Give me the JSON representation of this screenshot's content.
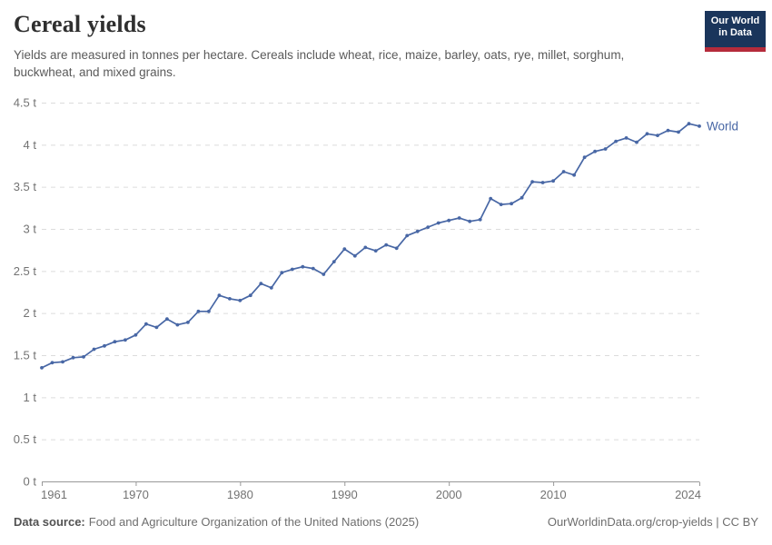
{
  "header": {
    "title": "Cereal yields",
    "subtitle_line1": "Yields are measured in tonnes per hectare. Cereals include wheat, rice, maize, barley, oats, rye, millet, sorghum,",
    "subtitle_line2": "buckwheat, and mixed grains."
  },
  "logo": {
    "line1": "Our World",
    "line2": "in Data",
    "bg_color": "#1a355b",
    "accent_color": "#b52b3b"
  },
  "chart_data": {
    "type": "line",
    "title": "Cereal yields",
    "subtitle": "Yields are measured in tonnes per hectare. Cereals include wheat, rice, maize, barley, oats, rye, millet, sorghum, buckwheat, and mixed grains.",
    "xlabel": "",
    "ylabel": "",
    "unit": "t",
    "xlim": [
      1961,
      2024
    ],
    "ylim": [
      0,
      4.5
    ],
    "grid": "horizontal-dashed",
    "legend_position": "end-of-line-label",
    "x": [
      1961,
      1962,
      1963,
      1964,
      1965,
      1966,
      1967,
      1968,
      1969,
      1970,
      1971,
      1972,
      1973,
      1974,
      1975,
      1976,
      1977,
      1978,
      1979,
      1980,
      1981,
      1982,
      1983,
      1984,
      1985,
      1986,
      1987,
      1988,
      1989,
      1990,
      1991,
      1992,
      1993,
      1994,
      1995,
      1996,
      1997,
      1998,
      1999,
      2000,
      2001,
      2002,
      2003,
      2004,
      2005,
      2006,
      2007,
      2008,
      2009,
      2010,
      2011,
      2012,
      2013,
      2014,
      2015,
      2016,
      2017,
      2018,
      2019,
      2020,
      2021,
      2022,
      2023,
      2024
    ],
    "series": [
      {
        "name": "World",
        "color": "#4867a5",
        "values": [
          1.35,
          1.41,
          1.42,
          1.47,
          1.48,
          1.57,
          1.61,
          1.66,
          1.68,
          1.74,
          1.87,
          1.83,
          1.93,
          1.86,
          1.89,
          2.02,
          2.02,
          2.21,
          2.17,
          2.15,
          2.21,
          2.35,
          2.3,
          2.48,
          2.52,
          2.55,
          2.53,
          2.46,
          2.61,
          2.76,
          2.68,
          2.78,
          2.74,
          2.81,
          2.77,
          2.92,
          2.97,
          3.02,
          3.07,
          3.1,
          3.13,
          3.09,
          3.11,
          3.36,
          3.29,
          3.3,
          3.37,
          3.56,
          3.55,
          3.57,
          3.68,
          3.64,
          3.85,
          3.92,
          3.95,
          4.04,
          4.08,
          4.03,
          4.13,
          4.11,
          4.17,
          4.15,
          4.25,
          4.22
        ]
      }
    ],
    "y_ticks": [
      {
        "value": 0,
        "label": "0 t"
      },
      {
        "value": 0.5,
        "label": "0.5 t"
      },
      {
        "value": 1,
        "label": "1 t"
      },
      {
        "value": 1.5,
        "label": "1.5 t"
      },
      {
        "value": 2,
        "label": "2 t"
      },
      {
        "value": 2.5,
        "label": "2.5 t"
      },
      {
        "value": 3,
        "label": "3 t"
      },
      {
        "value": 3.5,
        "label": "3.5 t"
      },
      {
        "value": 4,
        "label": "4 t"
      },
      {
        "value": 4.5,
        "label": "4.5 t"
      }
    ],
    "x_ticks": [
      {
        "value": 1961,
        "label": "1961",
        "anchor": "start"
      },
      {
        "value": 1970,
        "label": "1970",
        "anchor": "middle"
      },
      {
        "value": 1980,
        "label": "1980",
        "anchor": "middle"
      },
      {
        "value": 1990,
        "label": "1990",
        "anchor": "middle"
      },
      {
        "value": 2000,
        "label": "2000",
        "anchor": "middle"
      },
      {
        "value": 2010,
        "label": "2010",
        "anchor": "middle"
      },
      {
        "value": 2024,
        "label": "2024",
        "anchor": "end"
      }
    ],
    "colors": {
      "line": "#4867a5",
      "gridline": "#dcdcdc",
      "axis": "#999999",
      "tick_label": "#737373"
    }
  },
  "footer": {
    "source_label": "Data source:",
    "source_text": "Food and Agriculture Organization of the United Nations (2025)",
    "citation": "OurWorldinData.org/crop-yields | CC BY"
  }
}
